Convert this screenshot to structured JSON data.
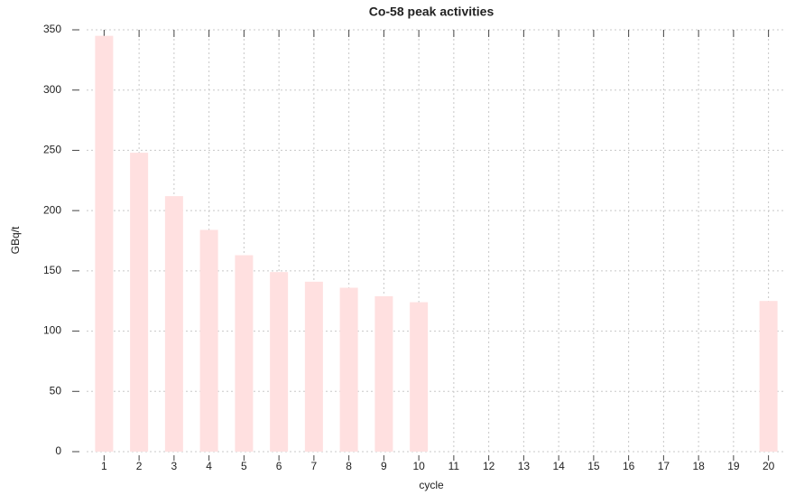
{
  "chart_data": {
    "type": "bar",
    "title": "Co-58 peak activities",
    "x_label": "cycle",
    "y_label": "GBq/t",
    "categories": [
      "1",
      "2",
      "3",
      "4",
      "5",
      "6",
      "7",
      "8",
      "9",
      "10",
      "11",
      "12",
      "13",
      "14",
      "15",
      "16",
      "17",
      "18",
      "19",
      "20"
    ],
    "values": [
      345,
      248,
      212,
      184,
      163,
      149,
      141,
      136,
      129,
      124,
      null,
      null,
      null,
      null,
      null,
      null,
      null,
      null,
      null,
      125
    ],
    "color": "#ffe0e0",
    "ylim": [
      0,
      350
    ],
    "yticks": [
      0,
      50,
      100,
      150,
      200,
      250,
      300,
      350
    ],
    "grid": true
  }
}
